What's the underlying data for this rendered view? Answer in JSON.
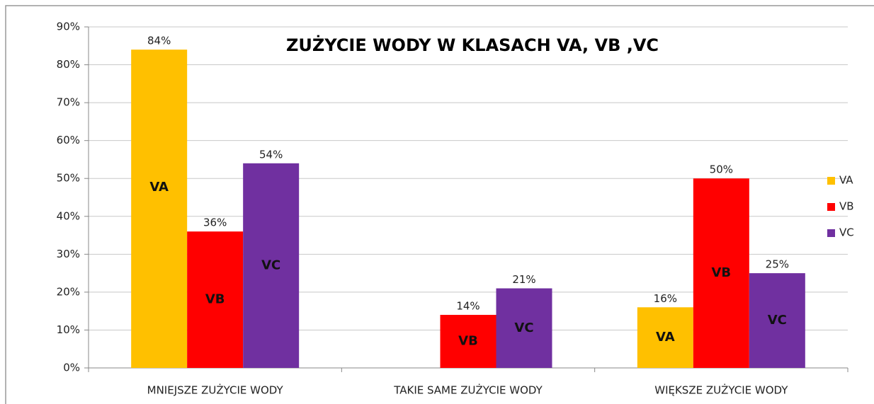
{
  "chart_data": {
    "type": "bar",
    "title": "ZUŻYCIE WODY W KLASACH VA, VB ,VC",
    "categories": [
      "MNIEJSZE ZUŻYCIE WODY",
      "TAKIE SAME ZUŻYCIE WODY",
      "WIĘKSZE ZUŻYCIE WODY"
    ],
    "series": [
      {
        "name": "VA",
        "color": "#ffc000",
        "values": [
          84,
          null,
          16
        ],
        "value_labels": [
          "84%",
          null,
          "16%"
        ]
      },
      {
        "name": "VB",
        "color": "#ff0000",
        "values": [
          36,
          14,
          50
        ],
        "value_labels": [
          "36%",
          "14%",
          "50%"
        ]
      },
      {
        "name": "VC",
        "color": "#7030a0",
        "values": [
          54,
          21,
          25
        ],
        "value_labels": [
          "54%",
          "21%",
          "25%"
        ]
      }
    ],
    "ylim": [
      0,
      90
    ],
    "yticks": [
      {
        "value": 0,
        "label": "0%"
      },
      {
        "value": 10,
        "label": "10%"
      },
      {
        "value": 20,
        "label": "20%"
      },
      {
        "value": 30,
        "label": "30%"
      },
      {
        "value": 40,
        "label": "40%"
      },
      {
        "value": 50,
        "label": "50%"
      },
      {
        "value": 60,
        "label": "60%"
      },
      {
        "value": 70,
        "label": "70%"
      },
      {
        "value": 80,
        "label": "80%"
      },
      {
        "value": 90,
        "label": "90%"
      }
    ],
    "grid": true,
    "legend": "right"
  }
}
